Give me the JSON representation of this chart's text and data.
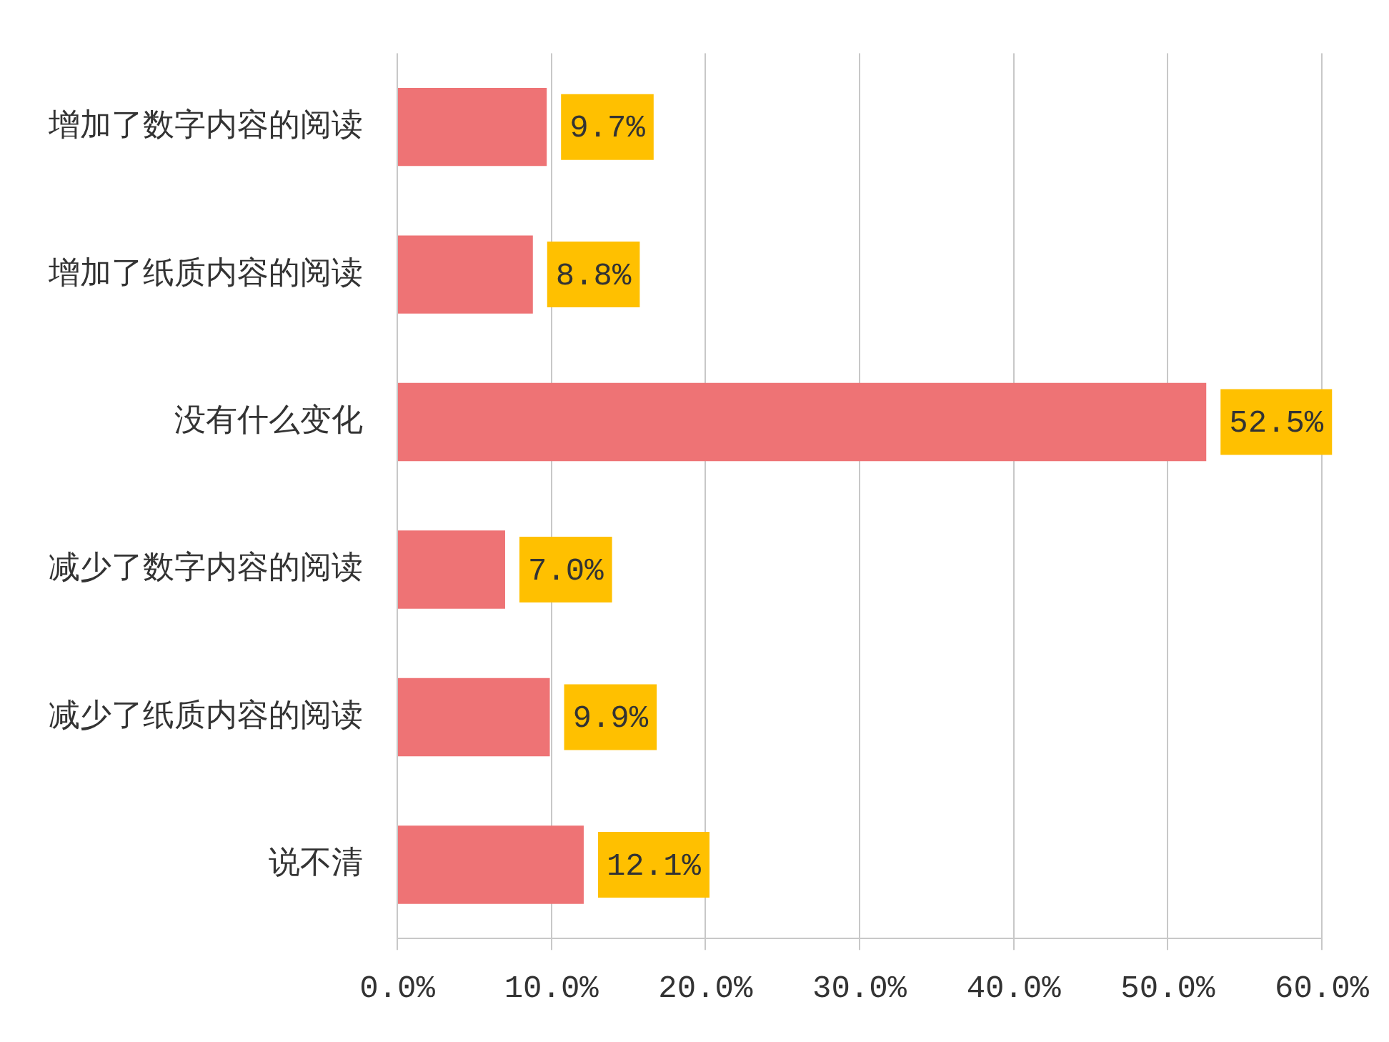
{
  "chart_data": {
    "type": "bar",
    "orientation": "horizontal",
    "categories": [
      "增加了数字内容的阅读",
      "增加了纸质内容的阅读",
      "没有什么变化",
      "减少了数字内容的阅读",
      "减少了纸质内容的阅读",
      "说不清"
    ],
    "values": [
      9.7,
      8.8,
      52.5,
      7.0,
      9.9,
      12.1
    ],
    "value_labels": [
      "9.7%",
      "8.8%",
      "52.5%",
      "7.0%",
      "9.9%",
      "12.1%"
    ],
    "color": "#ee7375",
    "xlim": [
      0,
      60
    ],
    "xticks": [
      {
        "value": 0,
        "label": "0.0%"
      },
      {
        "value": 10,
        "label": "10.0%"
      },
      {
        "value": 20,
        "label": "20.0%"
      },
      {
        "value": 30,
        "label": "30.0%"
      },
      {
        "value": 40,
        "label": "40.0%"
      },
      {
        "value": 50,
        "label": "50.0%"
      },
      {
        "value": 60,
        "label": "60.0%"
      }
    ],
    "grid": "x",
    "legend": false
  }
}
